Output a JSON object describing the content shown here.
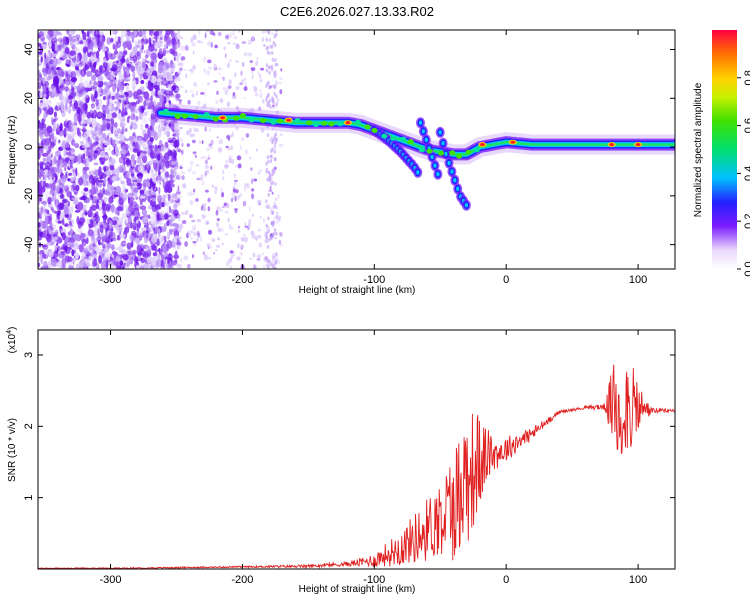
{
  "title": "C2E6.2026.027.13.33.R02",
  "chart_data": [
    {
      "type": "heatmap",
      "title": "C2E6.2026.027.13.33.R02",
      "xlabel": "Height of straight line (km)",
      "ylabel": "Frequency (Hz)",
      "xlim": [
        -355,
        128
      ],
      "ylim": [
        -50,
        48
      ],
      "xticks": [
        -300,
        -200,
        -100,
        0,
        100
      ],
      "yticks": [
        -40,
        -20,
        0,
        20,
        40
      ],
      "ridge": {
        "x": [
          -262,
          -240,
          -220,
          -200,
          -180,
          -160,
          -140,
          -120,
          -110,
          -100,
          -90,
          -80,
          -70,
          -60,
          -50,
          -40,
          -30,
          -20,
          -10,
          0,
          20,
          40,
          60,
          80,
          100,
          128
        ],
        "y": [
          14,
          13,
          12,
          12,
          11,
          10,
          10,
          10,
          9,
          7,
          5,
          3,
          1,
          -1,
          -2,
          -3,
          -3,
          0,
          1,
          2,
          1,
          1,
          1,
          1,
          1,
          1
        ]
      },
      "branches": [
        {
          "x": [
            -100,
            -90,
            -80,
            -70,
            -65
          ],
          "y": [
            7,
            3,
            -2,
            -8,
            -12
          ]
        },
        {
          "x": [
            -65,
            -60,
            -55,
            -50
          ],
          "y": [
            10,
            2,
            -6,
            -14
          ]
        },
        {
          "x": [
            -50,
            -45,
            -40,
            -35,
            -30
          ],
          "y": [
            6,
            -4,
            -12,
            -20,
            -24
          ]
        }
      ],
      "hotspots": [
        {
          "x": -215,
          "y": 12
        },
        {
          "x": -165,
          "y": 11
        },
        {
          "x": -120,
          "y": 10
        },
        {
          "x": -18,
          "y": 1
        },
        {
          "x": 5,
          "y": 2
        },
        {
          "x": 80,
          "y": 1
        },
        {
          "x": 100,
          "y": 1
        }
      ],
      "colorbar": {
        "label": "Normalized spectral amplitude",
        "ticks": [
          "0.0",
          "0.2",
          "0.4",
          "0.6",
          "0.8"
        ],
        "range": [
          0,
          1
        ]
      }
    },
    {
      "type": "line",
      "xlabel": "Height of straight line (km)",
      "ylabel": "SNR (10 * v/v)",
      "scale_label": "(x10",
      "scale_exponent": "4",
      "scale_close": ")",
      "xlim": [
        -355,
        128
      ],
      "ylim": [
        0,
        3.35
      ],
      "xticks": [
        -300,
        -200,
        -100,
        0,
        100
      ],
      "yticks": [
        1,
        2,
        3
      ],
      "color": "#e02020",
      "series": [
        {
          "x": [
            -355,
            -300,
            -250,
            -200,
            -150,
            -120,
            -100,
            -80,
            -60,
            -40,
            -30,
            -20,
            -15,
            -10,
            0,
            10,
            20,
            30,
            40,
            60,
            70,
            78,
            85,
            90,
            95,
            100,
            105,
            110,
            128
          ],
          "y": [
            0.01,
            0.01,
            0.02,
            0.03,
            0.04,
            0.07,
            0.12,
            0.3,
            0.55,
            0.9,
            1.3,
            1.5,
            1.6,
            1.6,
            1.68,
            1.8,
            1.9,
            2.05,
            2.2,
            2.26,
            2.27,
            2.28,
            2.3,
            2.3,
            2.28,
            2.25,
            2.24,
            2.22,
            2.22
          ]
        }
      ],
      "noise_envelope": {
        "x": [
          -355,
          -200,
          -120,
          -100,
          -80,
          -60,
          -50,
          -40,
          -30,
          -20,
          -15,
          -10,
          0,
          10,
          20,
          30,
          40,
          60,
          75,
          80,
          85,
          90,
          95,
          100,
          105,
          110,
          128
        ],
        "amp": [
          0.005,
          0.01,
          0.03,
          0.1,
          0.25,
          0.45,
          0.55,
          0.8,
          1.0,
          0.7,
          0.4,
          0.25,
          0.18,
          0.14,
          0.1,
          0.06,
          0.02,
          0.02,
          0.05,
          0.5,
          1.1,
          0.8,
          0.6,
          0.4,
          0.2,
          0.04,
          0.02
        ]
      }
    }
  ]
}
